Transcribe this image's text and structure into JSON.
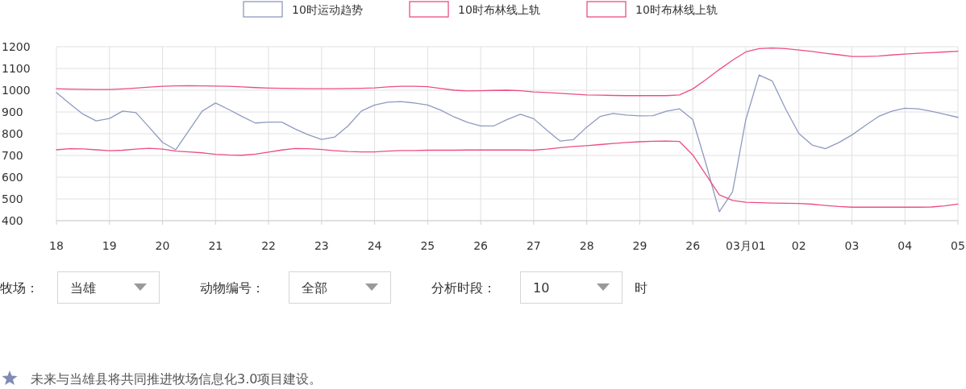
{
  "chart_data": {
    "type": "line",
    "categories": [
      "18",
      null,
      null,
      null,
      "19",
      null,
      null,
      null,
      "20",
      null,
      null,
      null,
      "21",
      null,
      null,
      null,
      "22",
      null,
      null,
      null,
      "23",
      null,
      null,
      null,
      "24",
      null,
      null,
      null,
      "25",
      null,
      null,
      null,
      "26",
      null,
      null,
      null,
      "27",
      null,
      null,
      null,
      "28",
      null,
      null,
      null,
      "29",
      null,
      null,
      null,
      "26",
      null,
      null,
      null,
      "03月01",
      null,
      null,
      null,
      "02",
      null,
      null,
      null,
      "03",
      null,
      null,
      null,
      "04",
      null,
      null,
      null,
      "05"
    ],
    "series": [
      {
        "name": "10时运动趋势",
        "color": "#8e9ac0",
        "values": [
          989,
          938,
          890,
          859,
          870,
          904,
          897,
          829,
          760,
          726,
          815,
          904,
          941,
          911,
          879,
          849,
          853,
          853,
          822,
          795,
          774,
          785,
          836,
          904,
          932,
          945,
          948,
          941,
          932,
          908,
          877,
          852,
          836,
          836,
          865,
          889,
          869,
          816,
          766,
          773,
          830,
          879,
          893,
          886,
          882,
          883,
          903,
          914,
          865,
          660,
          441,
          533,
          865,
          1070,
          1042,
          914,
          801,
          748,
          731,
          759,
          794,
          837,
          879,
          903,
          917,
          914,
          903,
          889,
          875
        ]
      },
      {
        "name": "10时布林线上轨",
        "color": "#ec4d85",
        "values": [
          1007,
          1005,
          1004,
          1003,
          1003,
          1006,
          1010,
          1014,
          1018,
          1020,
          1021,
          1020,
          1019,
          1018,
          1015,
          1012,
          1010,
          1009,
          1008,
          1007,
          1007,
          1007,
          1008,
          1009,
          1011,
          1015,
          1018,
          1018,
          1016,
          1008,
          1000,
          997,
          998,
          999,
          1000,
          998,
          992,
          989,
          986,
          982,
          978,
          977,
          976,
          975,
          975,
          975,
          975,
          978,
          1006,
          1049,
          1095,
          1138,
          1176,
          1191,
          1194,
          1191,
          1185,
          1178,
          1170,
          1163,
          1155,
          1155,
          1157,
          1162,
          1166,
          1170,
          1173,
          1176,
          1179
        ]
      },
      {
        "name": "10时布林线上轨",
        "color": "#ec4d85",
        "values": [
          726,
          731,
          730,
          726,
          722,
          724,
          729,
          733,
          729,
          720,
          716,
          712,
          705,
          702,
          701,
          706,
          715,
          725,
          732,
          731,
          727,
          722,
          718,
          716,
          716,
          720,
          723,
          723,
          724,
          724,
          724,
          725,
          725,
          725,
          725,
          725,
          724,
          729,
          736,
          741,
          745,
          750,
          755,
          760,
          763,
          765,
          766,
          764,
          702,
          611,
          519,
          493,
          485,
          483,
          481,
          480,
          479,
          476,
          470,
          465,
          462,
          462,
          462,
          462,
          462,
          462,
          463,
          468,
          476
        ]
      }
    ],
    "ylim": [
      400,
      1200
    ],
    "yticks": [
      400,
      500,
      600,
      700,
      800,
      900,
      1000,
      1100,
      1200
    ],
    "grid": true,
    "legend": "top",
    "annotations": [
      "牧场：",
      "当雄",
      "动物编号：",
      "全部",
      "分析时段：",
      "10",
      "时",
      "未来与当雄县将共同推进牧场信息化3.0项目建设。"
    ]
  }
}
